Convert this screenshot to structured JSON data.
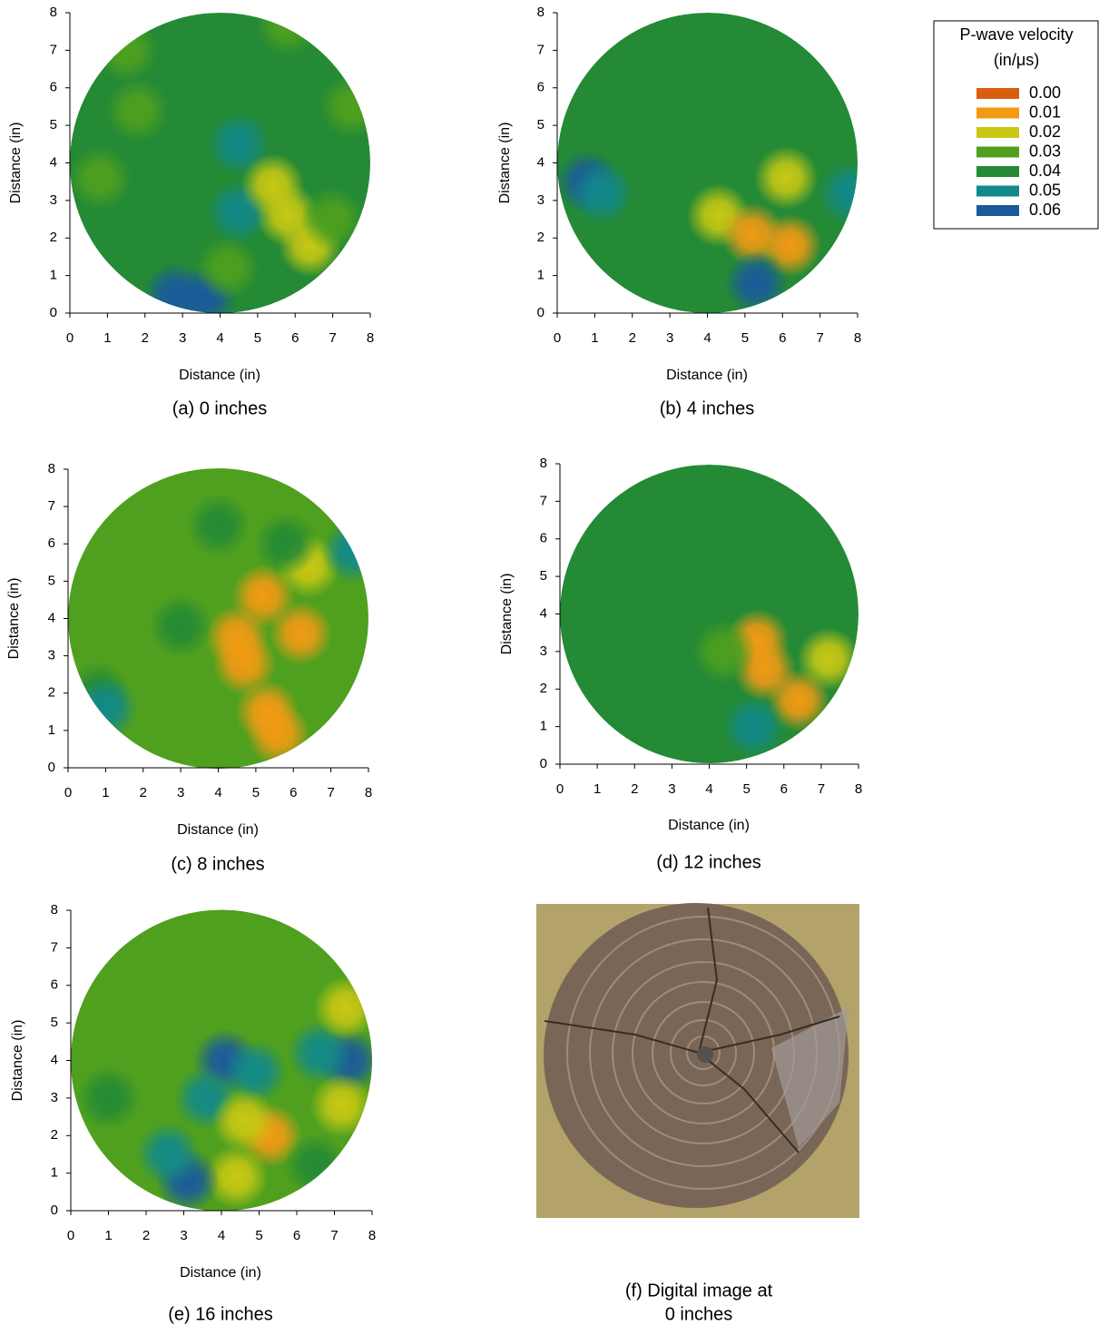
{
  "chart_data": [
    {
      "type": "heatmap",
      "caption": "(a) 0 inches",
      "xlabel": "Distance (in)",
      "ylabel": "Distance (in)",
      "xlim": [
        0,
        8
      ],
      "ylim": [
        0,
        8
      ],
      "xticks": [
        0,
        1,
        2,
        3,
        4,
        5,
        6,
        7,
        8
      ],
      "yticks": [
        0,
        1,
        2,
        3,
        4,
        5,
        6,
        7,
        8
      ],
      "background": 0.04,
      "x": [
        1.8,
        0.8,
        4.5,
        4.5,
        2.8,
        3.6,
        5.4,
        5.8,
        6.4,
        7.0,
        4.2,
        7.5,
        5.8,
        1.5
      ],
      "y": [
        5.4,
        3.6,
        4.5,
        2.7,
        0.5,
        0.4,
        3.4,
        2.6,
        1.8,
        2.5,
        1.2,
        5.5,
        7.7,
        7.0
      ],
      "values": [
        0.03,
        0.03,
        0.05,
        0.05,
        0.06,
        0.06,
        0.02,
        0.02,
        0.02,
        0.03,
        0.03,
        0.03,
        0.03,
        0.03
      ]
    },
    {
      "type": "heatmap",
      "caption": "(b) 4 inches",
      "xlabel": "Distance (in)",
      "ylabel": "Distance (in)",
      "xlim": [
        0,
        8
      ],
      "ylim": [
        0,
        8
      ],
      "xticks": [
        0,
        1,
        2,
        3,
        4,
        5,
        6,
        7,
        8
      ],
      "yticks": [
        0,
        1,
        2,
        3,
        4,
        5,
        6,
        7,
        8
      ],
      "background": 0.04,
      "x": [
        0.8,
        1.2,
        6.1,
        4.3,
        5.2,
        6.2,
        5.3,
        7.8
      ],
      "y": [
        3.5,
        3.2,
        3.6,
        2.6,
        2.1,
        1.8,
        0.8,
        3.2
      ],
      "values": [
        0.06,
        0.05,
        0.02,
        0.02,
        0.01,
        0.01,
        0.06,
        0.05
      ]
    },
    {
      "type": "heatmap",
      "caption": "(c) 8 inches",
      "xlabel": "Distance (in)",
      "ylabel": "Distance (in)",
      "xlim": [
        0,
        8
      ],
      "ylim": [
        0,
        8
      ],
      "xticks": [
        0,
        1,
        2,
        3,
        4,
        5,
        6,
        7,
        8
      ],
      "yticks": [
        0,
        1,
        2,
        3,
        4,
        5,
        6,
        7,
        8
      ],
      "background": 0.03,
      "x": [
        4.7,
        4.5,
        5.3,
        5.6,
        5.2,
        6.2,
        6.4,
        7.6,
        0.8,
        3.0,
        5.8,
        1.0,
        4.0
      ],
      "y": [
        2.8,
        3.5,
        1.5,
        0.9,
        4.6,
        3.6,
        5.4,
        5.8,
        2.0,
        3.8,
        6.0,
        1.6,
        6.5
      ],
      "values": [
        0.01,
        0.01,
        0.01,
        0.01,
        0.01,
        0.01,
        0.02,
        0.05,
        0.04,
        0.04,
        0.04,
        0.05,
        0.04
      ]
    },
    {
      "type": "heatmap",
      "caption": "(d) 12 inches",
      "xlabel": "Distance (in)",
      "ylabel": "Distance (in)",
      "xlim": [
        0,
        8
      ],
      "ylim": [
        0,
        8
      ],
      "xticks": [
        0,
        1,
        2,
        3,
        4,
        5,
        6,
        7,
        8
      ],
      "yticks": [
        0,
        1,
        2,
        3,
        4,
        5,
        6,
        7,
        8
      ],
      "background": 0.04,
      "x": [
        5.3,
        5.5,
        6.4,
        7.2,
        5.2,
        4.4
      ],
      "y": [
        3.3,
        2.5,
        1.7,
        2.8,
        1.0,
        3.0
      ],
      "values": [
        0.01,
        0.01,
        0.01,
        0.02,
        0.05,
        0.03
      ]
    },
    {
      "type": "heatmap",
      "caption": "(e) 16 inches",
      "xlabel": "Distance (in)",
      "ylabel": "Distance (in)",
      "xlim": [
        0,
        8
      ],
      "ylim": [
        0,
        8
      ],
      "xticks": [
        0,
        1,
        2,
        3,
        4,
        5,
        6,
        7,
        8
      ],
      "yticks": [
        0,
        1,
        2,
        3,
        4,
        5,
        6,
        7,
        8
      ],
      "background": 0.03,
      "x": [
        4.1,
        4.9,
        3.6,
        7.4,
        6.6,
        7.3,
        7.2,
        5.3,
        4.6,
        4.4,
        3.1,
        2.6,
        6.5,
        1.0,
        4.0
      ],
      "y": [
        4.0,
        3.7,
        3.0,
        4.0,
        4.2,
        5.4,
        2.8,
        2.0,
        2.4,
        0.9,
        0.8,
        1.5,
        1.2,
        3.0,
        7.0
      ],
      "values": [
        0.06,
        0.05,
        0.05,
        0.06,
        0.05,
        0.02,
        0.02,
        0.01,
        0.02,
        0.02,
        0.06,
        0.05,
        0.04,
        0.04,
        0.03
      ]
    }
  ],
  "legend": {
    "title": [
      "P-wave velocity",
      "(in/μs)"
    ],
    "levels": [
      {
        "value": 0,
        "label": "0.00"
      },
      0.01,
      0.02,
      0.03,
      0.04,
      0.05,
      0.06
    ],
    "colors": [
      "#d95f0e",
      "#f39a14",
      "#c9c814",
      "#4fa01e",
      "#248a35",
      "#12898a",
      "#1a5a9c"
    ]
  },
  "photo": {
    "caption": [
      "(f) Digital image at",
      "0 inches"
    ]
  }
}
